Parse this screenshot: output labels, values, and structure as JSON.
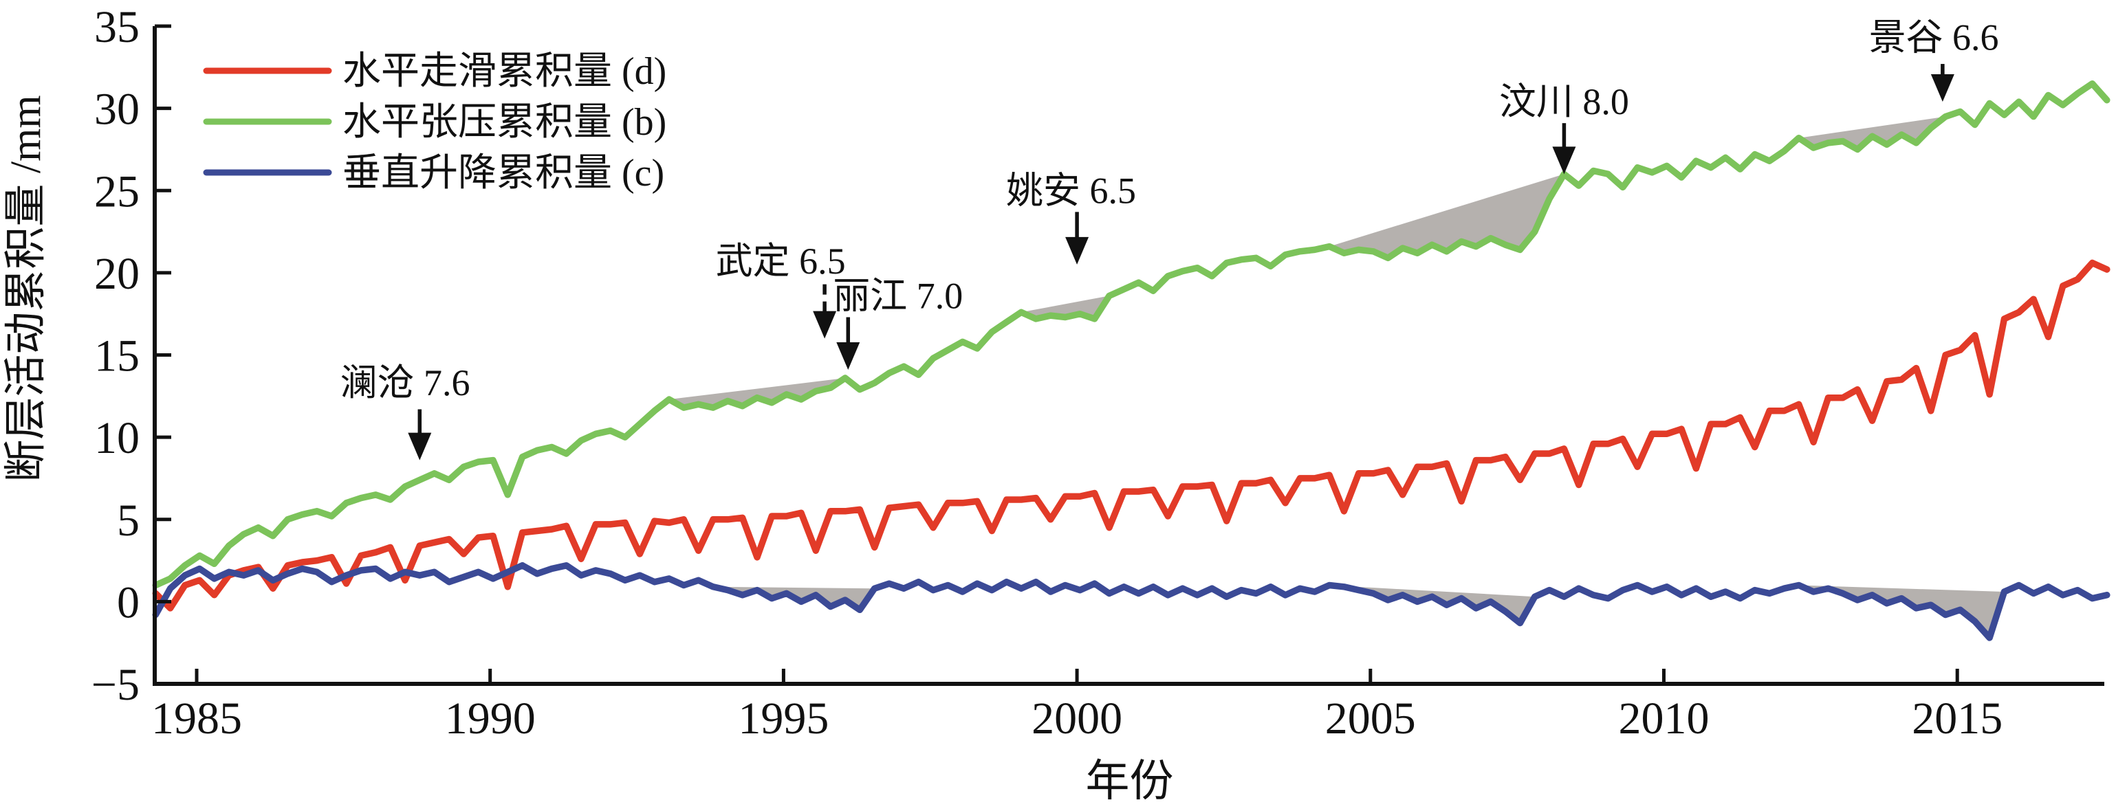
{
  "chart_data": {
    "type": "line",
    "title": "",
    "xlabel": "年份",
    "ylabel": "断层活动累积量 /mm",
    "xlim": [
      1984.0,
      2017.8
    ],
    "ylim": [
      -5,
      35
    ],
    "x_ticks": [
      1985,
      1990,
      1995,
      2000,
      2005,
      2010,
      2015
    ],
    "y_ticks": [
      -5,
      0,
      5,
      10,
      15,
      20,
      25,
      30,
      35
    ],
    "y_tick_labels": [
      "−5",
      "0",
      "5",
      "10",
      "15",
      "20",
      "25",
      "30",
      "35"
    ],
    "grid": false,
    "legend_position": "top-left",
    "sampling": {
      "start_year": 1984.3,
      "step_years": 0.25
    },
    "series": [
      {
        "name": "水平走滑累积量 (d)",
        "color": "#e23b28",
        "values": [
          0.5,
          -0.4,
          1.0,
          1.3,
          0.4,
          1.6,
          1.9,
          2.1,
          0.8,
          2.2,
          2.4,
          2.5,
          2.7,
          1.1,
          2.8,
          3.0,
          3.3,
          1.3,
          3.4,
          3.6,
          3.8,
          2.9,
          3.9,
          4.0,
          0.9,
          4.2,
          4.3,
          4.4,
          4.6,
          2.6,
          4.7,
          4.7,
          4.8,
          2.9,
          4.9,
          4.8,
          5.0,
          3.1,
          5.0,
          5.0,
          5.1,
          2.7,
          5.2,
          5.2,
          5.4,
          3.1,
          5.5,
          5.5,
          5.6,
          3.3,
          5.7,
          5.8,
          5.9,
          4.5,
          6.0,
          6.0,
          6.1,
          4.3,
          6.2,
          6.2,
          6.3,
          5.0,
          6.4,
          6.4,
          6.6,
          4.5,
          6.7,
          6.7,
          6.8,
          5.2,
          7.0,
          7.0,
          7.1,
          4.9,
          7.2,
          7.2,
          7.4,
          6.0,
          7.5,
          7.5,
          7.7,
          5.5,
          7.8,
          7.8,
          8.0,
          6.5,
          8.2,
          8.2,
          8.4,
          6.1,
          8.6,
          8.6,
          8.8,
          7.4,
          9.0,
          9.0,
          9.3,
          7.1,
          9.6,
          9.6,
          9.9,
          8.2,
          10.2,
          10.2,
          10.5,
          8.1,
          10.8,
          10.8,
          11.2,
          9.4,
          11.6,
          11.6,
          12.0,
          9.7,
          12.4,
          12.4,
          12.9,
          11.0,
          13.4,
          13.5,
          14.2,
          11.6,
          15.0,
          15.3,
          16.2,
          12.6,
          17.2,
          17.6,
          18.4,
          16.1,
          19.2,
          19.6,
          20.6,
          20.2
        ]
      },
      {
        "name": "水平张压累积量 (b)",
        "color": "#7cc35a",
        "values": [
          1.0,
          1.4,
          2.2,
          2.8,
          2.3,
          3.4,
          4.1,
          4.5,
          4.0,
          5.0,
          5.3,
          5.5,
          5.2,
          6.0,
          6.3,
          6.5,
          6.2,
          7.0,
          7.4,
          7.8,
          7.4,
          8.2,
          8.5,
          8.6,
          6.5,
          8.8,
          9.2,
          9.4,
          9.0,
          9.8,
          10.2,
          10.4,
          10.0,
          10.8,
          11.6,
          12.3,
          11.8,
          12.0,
          11.8,
          12.2,
          11.9,
          12.4,
          12.1,
          12.6,
          12.3,
          12.8,
          13.0,
          13.6,
          12.9,
          13.3,
          13.9,
          14.3,
          13.8,
          14.8,
          15.3,
          15.8,
          15.4,
          16.4,
          17.0,
          17.6,
          17.2,
          17.4,
          17.3,
          17.5,
          17.2,
          18.6,
          19.0,
          19.4,
          18.9,
          19.8,
          20.1,
          20.3,
          19.8,
          20.6,
          20.8,
          20.9,
          20.4,
          21.1,
          21.3,
          21.4,
          21.6,
          21.2,
          21.4,
          21.3,
          20.9,
          21.5,
          21.2,
          21.7,
          21.3,
          21.9,
          21.6,
          22.1,
          21.7,
          21.4,
          22.5,
          24.5,
          26.0,
          25.3,
          26.2,
          26.0,
          25.2,
          26.4,
          26.1,
          26.5,
          25.8,
          26.8,
          26.4,
          27.0,
          26.3,
          27.2,
          26.8,
          27.4,
          28.2,
          27.6,
          27.9,
          28.0,
          27.5,
          28.3,
          27.8,
          28.4,
          27.9,
          28.8,
          29.5,
          29.8,
          29.0,
          30.3,
          29.6,
          30.4,
          29.5,
          30.8,
          30.2,
          30.9,
          31.5,
          30.5
        ]
      },
      {
        "name": "垂直升降累积量 (c)",
        "color": "#3b4a96",
        "values": [
          -0.8,
          0.8,
          1.6,
          2.0,
          1.4,
          1.8,
          1.6,
          1.9,
          1.3,
          1.7,
          2.0,
          1.8,
          1.2,
          1.6,
          1.9,
          2.0,
          1.4,
          1.8,
          1.6,
          1.8,
          1.2,
          1.5,
          1.8,
          1.4,
          1.8,
          2.2,
          1.7,
          2.0,
          2.2,
          1.6,
          1.9,
          1.7,
          1.3,
          1.6,
          1.2,
          1.4,
          1.0,
          1.3,
          0.9,
          0.7,
          0.4,
          0.7,
          0.2,
          0.5,
          0.0,
          0.4,
          -0.3,
          0.1,
          -0.5,
          0.8,
          1.1,
          0.8,
          1.2,
          0.7,
          1.0,
          0.6,
          1.1,
          0.7,
          1.2,
          0.8,
          1.2,
          0.6,
          1.0,
          0.7,
          1.1,
          0.5,
          0.9,
          0.5,
          0.9,
          0.4,
          0.8,
          0.4,
          0.8,
          0.3,
          0.7,
          0.5,
          0.9,
          0.4,
          0.8,
          0.6,
          1.0,
          0.9,
          0.7,
          0.5,
          0.1,
          0.4,
          0.0,
          0.3,
          -0.2,
          0.2,
          -0.4,
          0.0,
          -0.6,
          -1.3,
          0.3,
          0.7,
          0.3,
          0.8,
          0.4,
          0.2,
          0.7,
          1.0,
          0.6,
          0.9,
          0.4,
          0.8,
          0.3,
          0.6,
          0.2,
          0.7,
          0.5,
          0.8,
          1.0,
          0.6,
          0.8,
          0.5,
          0.1,
          0.4,
          -0.1,
          0.2,
          -0.4,
          -0.2,
          -0.8,
          -0.5,
          -1.2,
          -2.2,
          0.6,
          1.0,
          0.5,
          0.9,
          0.4,
          0.7,
          0.2,
          0.4
        ]
      }
    ],
    "shaded_deficit_regions": {
      "color": "#b5b1ae",
      "regions": [
        {
          "series": 1,
          "from": [
            1993.05,
            12.3
          ],
          "to": [
            1996.05,
            13.6
          ]
        },
        {
          "series": 1,
          "from": [
            1999.05,
            17.6
          ],
          "to": [
            2000.55,
            18.6
          ]
        },
        {
          "series": 1,
          "from": [
            2004.3,
            21.6
          ],
          "to": [
            2008.3,
            26.0
          ]
        },
        {
          "series": 1,
          "from": [
            2012.3,
            28.2
          ],
          "to": [
            2014.8,
            29.5
          ]
        },
        {
          "series": 2,
          "from": [
            1993.8,
            0.9
          ],
          "to": [
            1996.55,
            0.8
          ]
        },
        {
          "series": 2,
          "from": [
            2004.3,
            1.0
          ],
          "to": [
            2007.8,
            0.3
          ]
        },
        {
          "series": 2,
          "from": [
            2012.3,
            1.0
          ],
          "to": [
            2015.8,
            0.6
          ]
        }
      ]
    },
    "annotations": [
      {
        "label": "澜沧 7.6",
        "label_x": 1988.55,
        "label_y": 13.3,
        "arrow_x": 1988.8,
        "arrow_from": 11.7,
        "arrow_to": 8.6,
        "dashed": false
      },
      {
        "label": "武定 6.5",
        "label_x": 1994.95,
        "label_y": 20.7,
        "arrow_x": 1995.7,
        "arrow_from": 19.3,
        "arrow_to": 16.0,
        "dashed": true
      },
      {
        "label": "丽江 7.0",
        "label_x": 1996.95,
        "label_y": 18.6,
        "arrow_x": 1996.1,
        "arrow_from": 17.3,
        "arrow_to": 14.1,
        "dashed": false
      },
      {
        "label": "姚安 6.5",
        "label_x": 1999.9,
        "label_y": 25.0,
        "arrow_x": 2000.0,
        "arrow_from": 23.7,
        "arrow_to": 20.5,
        "dashed": false
      },
      {
        "label": "汶川 8.0",
        "label_x": 2008.3,
        "label_y": 30.4,
        "arrow_x": 2008.3,
        "arrow_from": 29.1,
        "arrow_to": 26.0,
        "dashed": false
      },
      {
        "label": "景谷 6.6",
        "label_x": 2014.6,
        "label_y": 34.3,
        "arrow_x": 2014.75,
        "arrow_from": 32.7,
        "arrow_to": 30.4,
        "dashed": false
      }
    ],
    "legend": {
      "entries": [
        "水平走滑累积量 (d)",
        "水平张压累积量 (b)",
        "垂直升降累积量 (c)"
      ]
    },
    "colors": {
      "strike_slip": "#e23b28",
      "extension_compression": "#7cc35a",
      "vertical": "#3b4a96",
      "deficit_fill": "#b5b1ae",
      "axis": "#111111"
    }
  }
}
